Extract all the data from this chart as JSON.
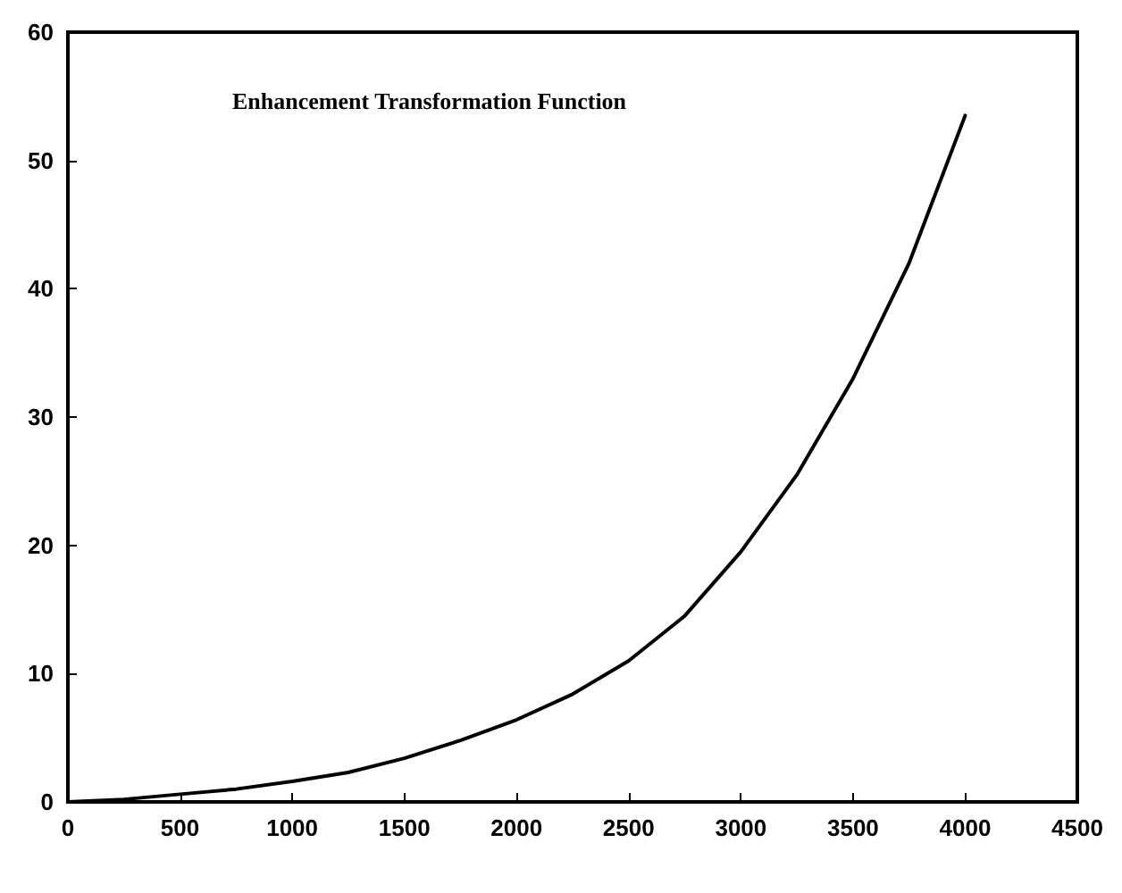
{
  "chart_data": {
    "type": "line",
    "title": "Enhancement Transformation Function",
    "x": [
      0,
      250,
      500,
      750,
      1000,
      1250,
      1500,
      1750,
      2000,
      2250,
      2500,
      2750,
      3000,
      3250,
      3500,
      3750,
      4000
    ],
    "series": [
      {
        "color": "#000000",
        "values": [
          0,
          0.2,
          0.6,
          1.0,
          1.6,
          2.3,
          3.4,
          4.8,
          6.4,
          8.4,
          11,
          14.5,
          19.5,
          25.5,
          33,
          42,
          53.5
        ]
      }
    ],
    "xlim": [
      0,
      4500
    ],
    "xticks": [
      0,
      500,
      1000,
      1500,
      2000,
      2500,
      3000,
      3500,
      4000,
      4500
    ],
    "ylim": [
      0,
      60
    ],
    "yticks": [
      0,
      10,
      20,
      30,
      40,
      50,
      60
    ],
    "marker": "none",
    "line_style": "solid"
  }
}
